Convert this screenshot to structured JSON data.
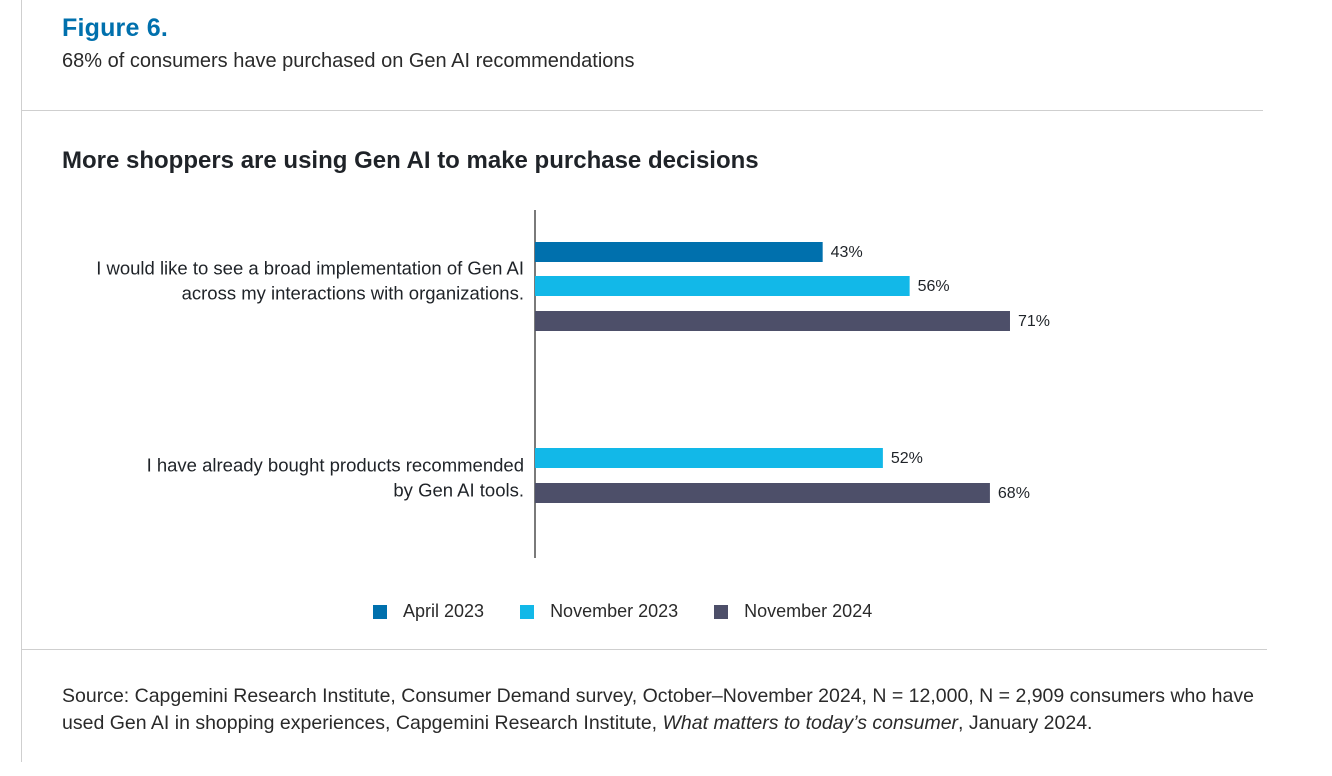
{
  "figure": {
    "label": "Figure 6.",
    "subtitle": "68% of consumers have purchased on Gen AI recommendations"
  },
  "chart_data": {
    "type": "bar",
    "orientation": "horizontal",
    "title": "More shoppers are using Gen AI to make purchase decisions",
    "categories": [
      [
        "I would like to see a broad implementation of Gen AI",
        "across my interactions with organizations."
      ],
      [
        "I have already bought products recommended",
        "by Gen AI tools."
      ]
    ],
    "series": [
      {
        "name": "April 2023",
        "color": "#0070ad",
        "values": [
          43,
          null
        ],
        "labels": [
          "43%",
          null
        ]
      },
      {
        "name": "November 2023",
        "color": "#12b8e8",
        "values": [
          56,
          52
        ],
        "labels": [
          "56%",
          "52%"
        ]
      },
      {
        "name": "November 2024",
        "color": "#4d4f69",
        "values": [
          71,
          68
        ],
        "labels": [
          "71%",
          "68%"
        ]
      }
    ],
    "xlim": [
      0,
      100
    ],
    "grid": false,
    "legend_position": "bottom"
  },
  "source": {
    "prefix": "Source: Capgemini Research Institute, Consumer Demand survey, October–November 2024, N = 12,000, N = 2,909 consumers who have used Gen AI in shopping experiences, Capgemini Research Institute, ",
    "title": "What matters to today’s consumer",
    "suffix": ", January 2024."
  }
}
